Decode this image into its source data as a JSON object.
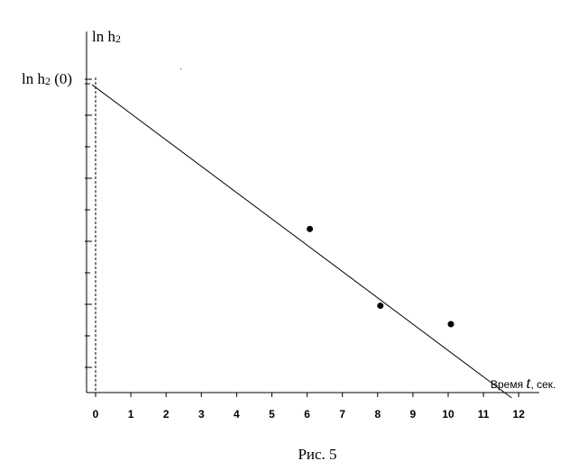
{
  "caption": "Рис. 5",
  "chart_data": {
    "type": "scatter",
    "title": "",
    "xlabel_prefix": "Время",
    "xlabel_var": "t",
    "xlabel_suffix": ", сек.",
    "ylabel_main": "ln h",
    "ylabel_sub": "2",
    "y0_label_main": "ln h",
    "y0_label_sub": "2",
    "y0_label_arg": " (0)",
    "x_ticks": [
      "0",
      "1",
      "2",
      "3",
      "4",
      "5",
      "6",
      "7",
      "8",
      "9",
      "10",
      "11",
      "12"
    ],
    "xlim": [
      0,
      12
    ],
    "points": [
      {
        "x": 6,
        "y": 0.48
      },
      {
        "x": 8,
        "y": 0.23
      },
      {
        "x": 10,
        "y": 0.17
      }
    ],
    "fit_line": [
      {
        "x": -0.1,
        "y": 0.95
      },
      {
        "x": 11.8,
        "y": -0.07
      }
    ],
    "y_major_ticks": 7,
    "y_minor_ticks": 6,
    "intercept_dashed_line": true,
    "grid": false,
    "legend": "none"
  }
}
